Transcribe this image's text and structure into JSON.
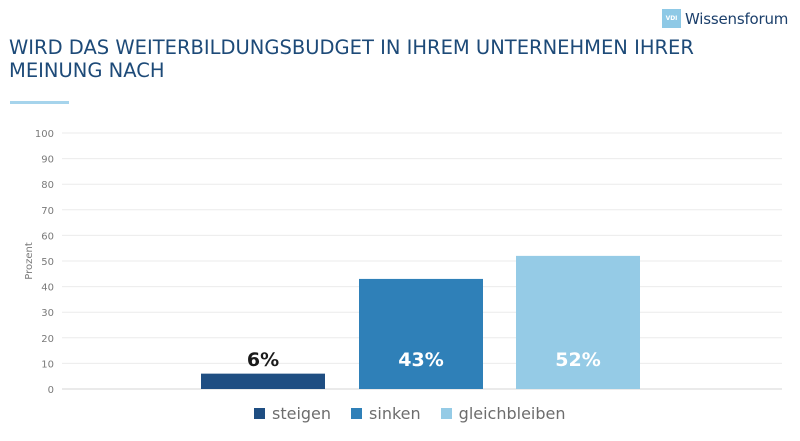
{
  "header": {
    "logo_badge": "VDI",
    "logo_text": "Wissensforum",
    "title_line1": "WIRD DAS WEITERBILDUNGSBUDGET IN IHREM UNTERNEHMEN IHRER",
    "title_line2": "MEINUNG NACH"
  },
  "colors": {
    "steigen": "#1f4e82",
    "sinken": "#2f80b8",
    "gleichbleiben": "#95cbe6",
    "title": "#1d4a78",
    "rule": "#a6d4ec"
  },
  "chart_data": {
    "type": "bar",
    "categories": [
      "steigen",
      "sinken",
      "gleichbleiben"
    ],
    "values": [
      6,
      43,
      52
    ],
    "data_labels": [
      "6%",
      "43%",
      "52%"
    ],
    "xlabel": "",
    "ylabel": "Prozent",
    "ylim": [
      0,
      100
    ],
    "yticks": [
      0,
      10,
      20,
      30,
      40,
      50,
      60,
      70,
      80,
      90,
      100
    ],
    "grid": true,
    "legend_position": "bottom",
    "legend": [
      "steigen",
      "sinken",
      "gleichbleiben"
    ]
  }
}
